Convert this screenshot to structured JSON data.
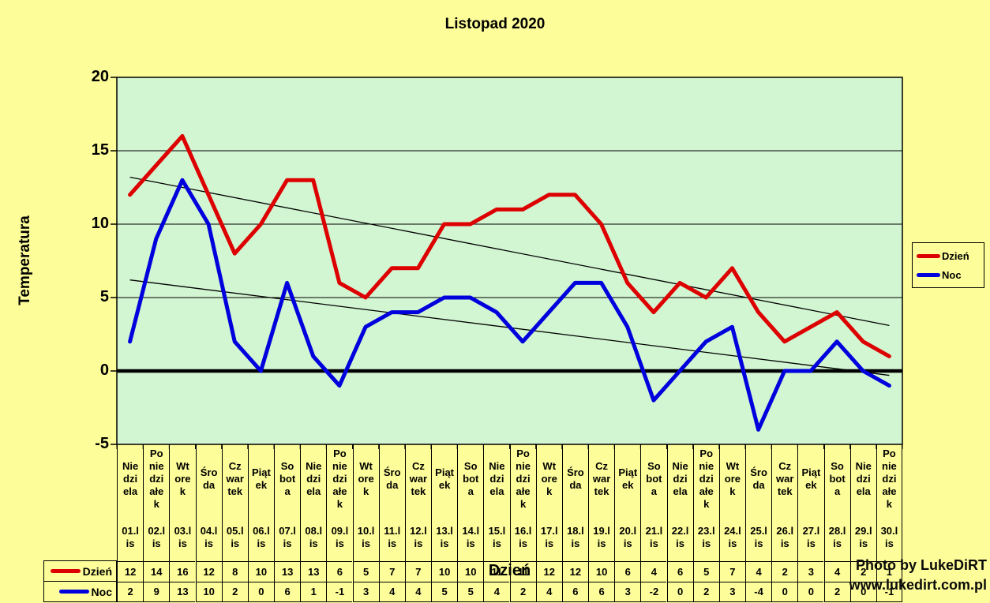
{
  "title": "Listopad 2020",
  "colors": {
    "page_bg": "#FDFD99",
    "plot_bg": "#D2F5D2",
    "dzien": "#DD0000",
    "noc": "#0000DD",
    "axis": "#000000"
  },
  "y_axis": {
    "label": "Temperatura",
    "ticks": [
      20,
      15,
      10,
      5,
      0,
      -5
    ]
  },
  "x_axis": {
    "label": "Dzień"
  },
  "legend": {
    "items": [
      {
        "label": "Dzień",
        "color": "#DD0000"
      },
      {
        "label": "Noc",
        "color": "#0000DD"
      }
    ]
  },
  "table": {
    "row_headers": [
      "Dzień",
      "Noc"
    ]
  },
  "watermark": {
    "line1": "Photo by LukeDiRT",
    "line2": "www.lukedirt.com.pl"
  },
  "chart_data": {
    "type": "line",
    "title": "Listopad 2020",
    "xlabel": "Dzień",
    "ylabel": "Temperatura",
    "ylim": [
      -5,
      20
    ],
    "ytick_step": 5,
    "grid": true,
    "legend_position": "right",
    "categories": [
      "01.lis",
      "02.lis",
      "03.lis",
      "04.lis",
      "05.lis",
      "06.lis",
      "07.lis",
      "08.lis",
      "09.lis",
      "10.lis",
      "11.lis",
      "12.lis",
      "13.lis",
      "14.lis",
      "15.lis",
      "16.lis",
      "17.lis",
      "18.lis",
      "19.lis",
      "20.lis",
      "21.lis",
      "22.lis",
      "23.lis",
      "24.lis",
      "25.lis",
      "26.lis",
      "27.lis",
      "28.lis",
      "29.lis",
      "30.lis"
    ],
    "day_names": [
      "Niedziela",
      "Poniedziałek",
      "Wtorek",
      "Środa",
      "Czwartek",
      "Piątek",
      "Sobota",
      "Niedziela",
      "Poniedziałek",
      "Wtorek",
      "Środa",
      "Czwartek",
      "Piątek",
      "Sobota",
      "Niedziela",
      "Poniedziałek",
      "Wtorek",
      "Środa",
      "Czwartek",
      "Piątek",
      "Sobota",
      "Niedziela",
      "Poniedziałek",
      "Wtorek",
      "Środa",
      "Czwartek",
      "Piątek",
      "Sobota",
      "Niedziela",
      "Poniedziałek"
    ],
    "series": [
      {
        "name": "Dzień",
        "color": "#DD0000",
        "values": [
          12,
          14,
          16,
          12,
          8,
          10,
          13,
          13,
          6,
          5,
          7,
          7,
          10,
          10,
          11,
          11,
          12,
          12,
          10,
          6,
          4,
          6,
          5,
          7,
          4,
          2,
          3,
          4,
          2,
          1
        ]
      },
      {
        "name": "Noc",
        "color": "#0000DD",
        "values": [
          2,
          9,
          13,
          10,
          2,
          0,
          6,
          1,
          -1,
          3,
          4,
          4,
          5,
          5,
          4,
          2,
          4,
          6,
          6,
          3,
          -2,
          0,
          2,
          3,
          -4,
          0,
          0,
          2,
          0,
          -1
        ]
      }
    ],
    "trendlines": [
      {
        "series": "Dzień",
        "color": "#000000",
        "start": 13.2,
        "end": 3.1
      },
      {
        "series": "Noc",
        "color": "#000000",
        "start": 6.2,
        "end": -0.3
      }
    ]
  }
}
